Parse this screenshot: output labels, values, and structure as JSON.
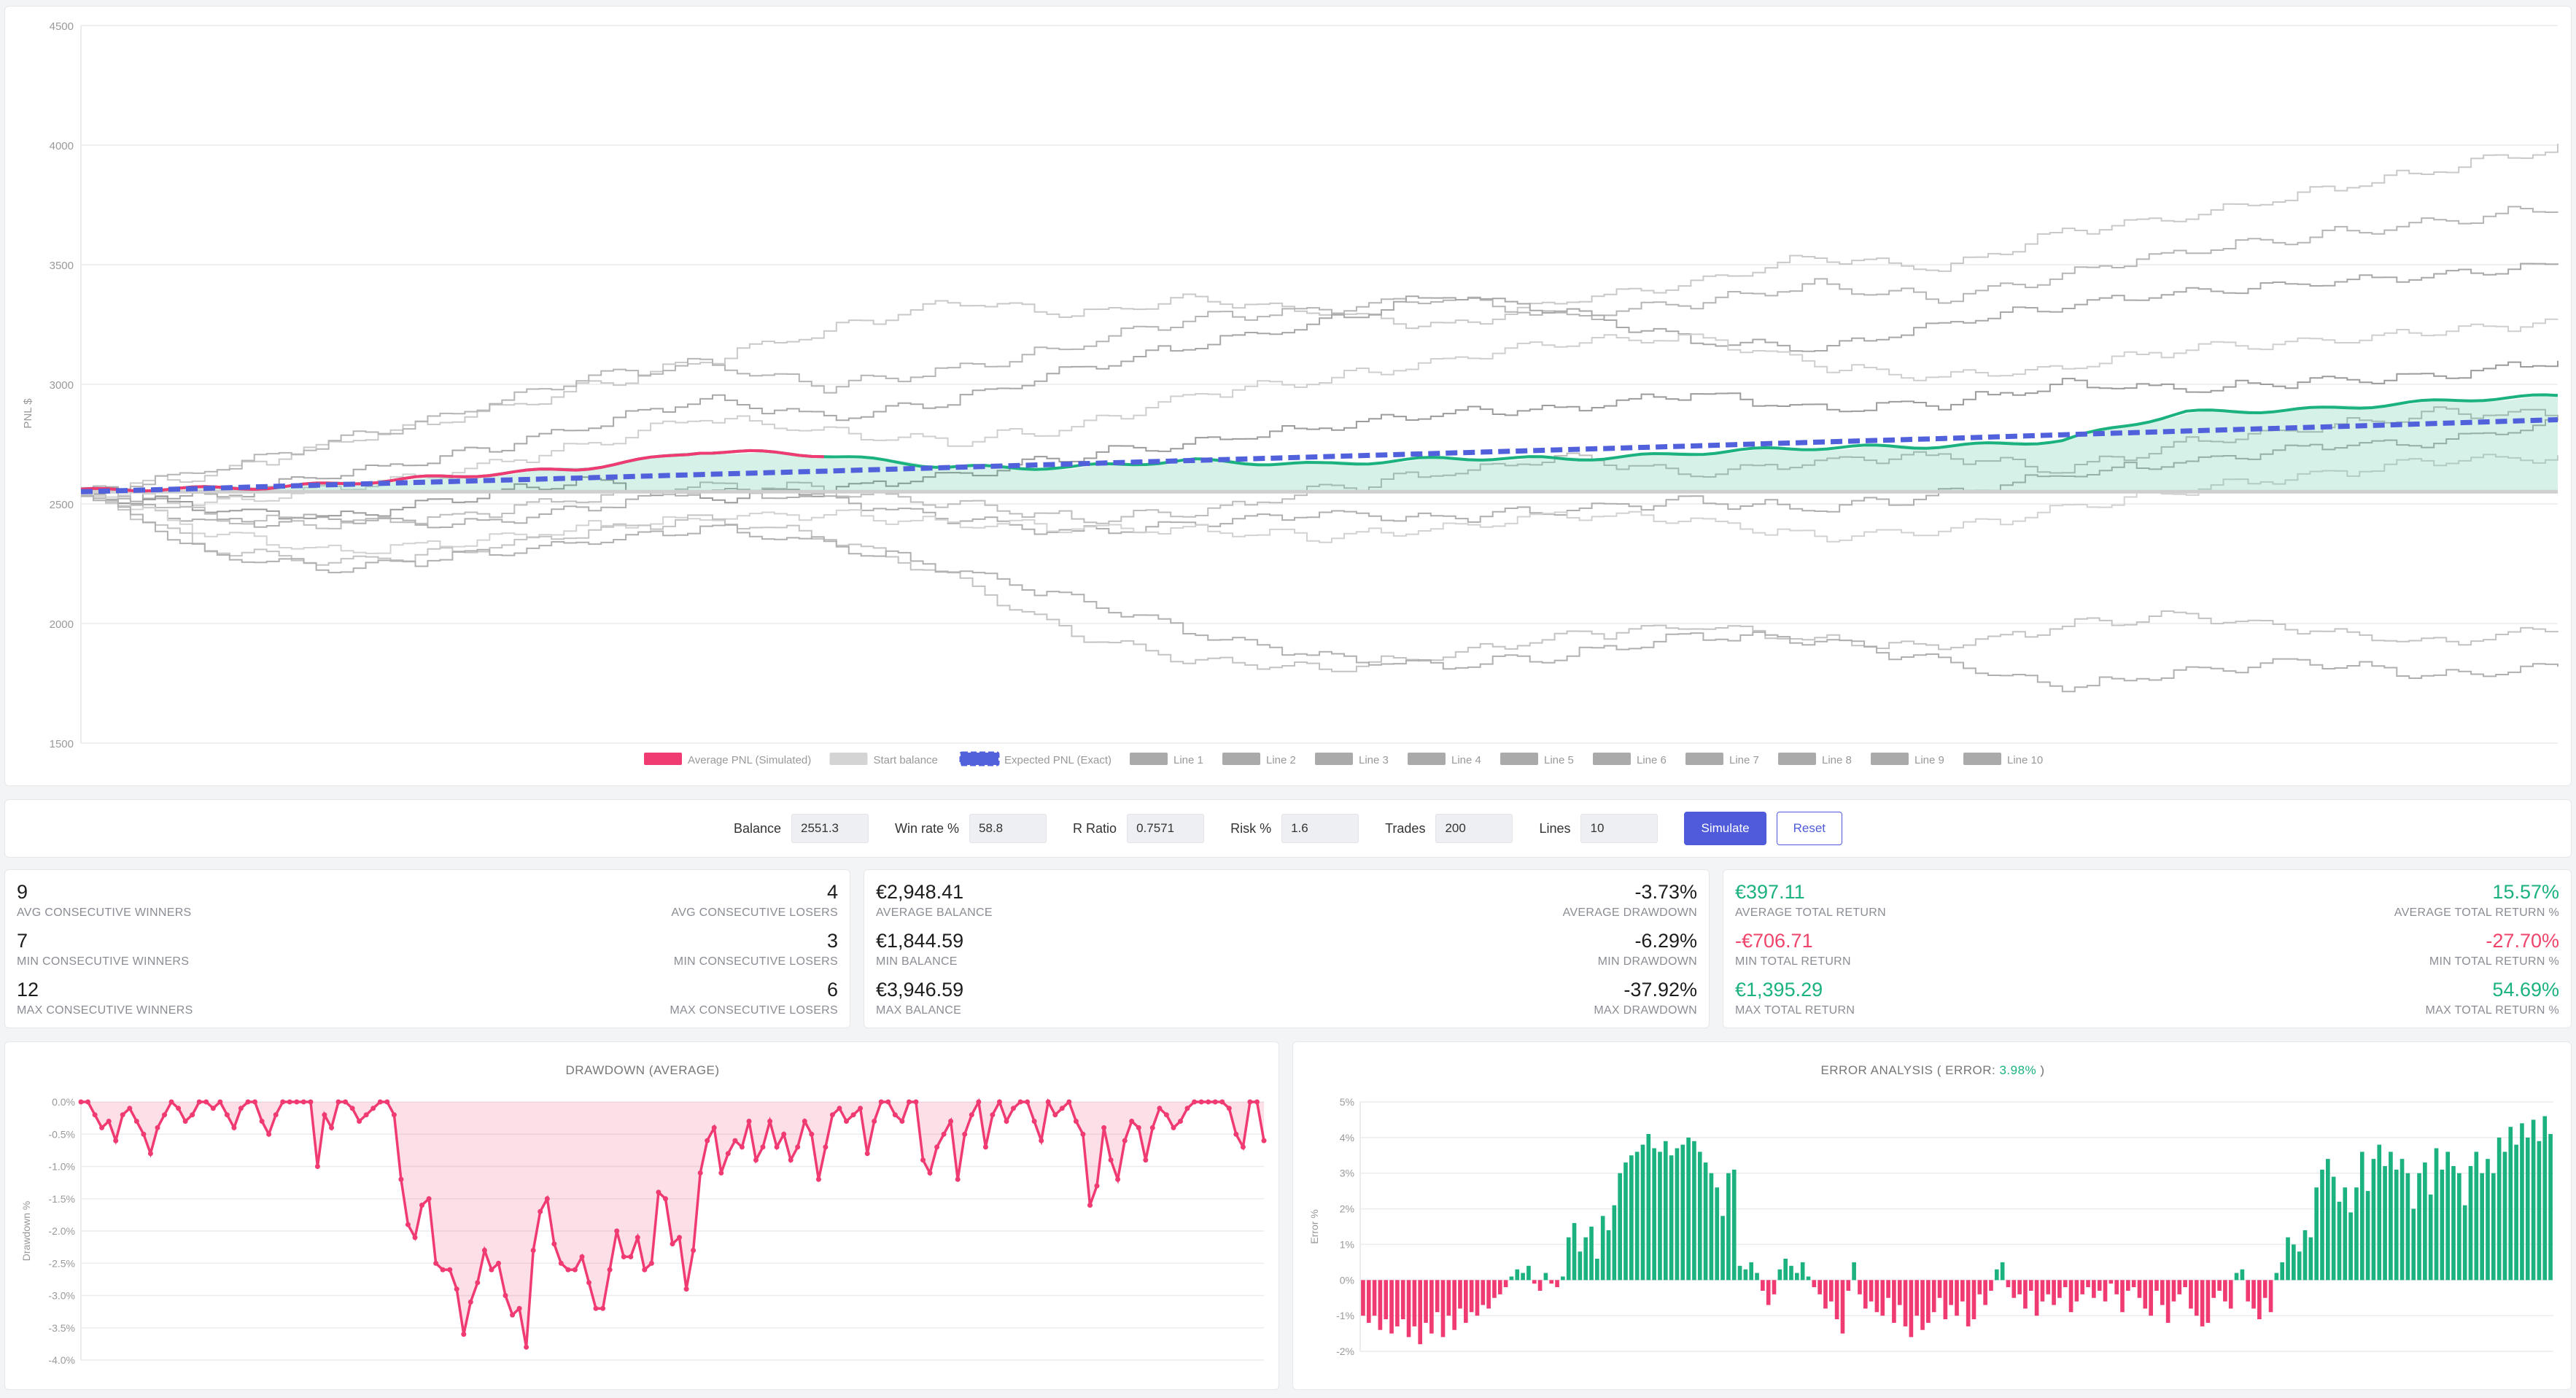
{
  "main_chart": {
    "ylabel": "PNL $",
    "y_ticks": [
      "4500",
      "4000",
      "3500",
      "3000",
      "2500",
      "2000",
      "1500"
    ],
    "y_range": [
      1500,
      4500
    ],
    "legend": [
      {
        "label": "Average PNL (Simulated)",
        "color": "#f03a72"
      },
      {
        "label": "Start balance",
        "color": "#d4d4d4"
      },
      {
        "label": "Expected PNL (Exact)",
        "color": "#5160db"
      },
      {
        "label": "Line 1",
        "color": "#aaaaaa"
      },
      {
        "label": "Line 2",
        "color": "#aaaaaa"
      },
      {
        "label": "Line 3",
        "color": "#aaaaaa"
      },
      {
        "label": "Line 4",
        "color": "#aaaaaa"
      },
      {
        "label": "Line 5",
        "color": "#aaaaaa"
      },
      {
        "label": "Line 6",
        "color": "#aaaaaa"
      },
      {
        "label": "Line 7",
        "color": "#aaaaaa"
      },
      {
        "label": "Line 8",
        "color": "#aaaaaa"
      },
      {
        "label": "Line 9",
        "color": "#aaaaaa"
      },
      {
        "label": "Line 10",
        "color": "#aaaaaa"
      }
    ]
  },
  "controls": {
    "balance_label": "Balance",
    "balance_value": "2551.3",
    "winrate_label": "Win rate %",
    "winrate_value": "58.8",
    "rratio_label": "R Ratio",
    "rratio_value": "0.7571",
    "risk_label": "Risk %",
    "risk_value": "1.6",
    "trades_label": "Trades",
    "trades_value": "200",
    "lines_label": "Lines",
    "lines_value": "10",
    "simulate_label": "Simulate",
    "reset_label": "Reset"
  },
  "stats_consecutive": {
    "avg_winners_value": "9",
    "avg_winners_label": "AVG CONSECUTIVE WINNERS",
    "avg_losers_value": "4",
    "avg_losers_label": "AVG CONSECUTIVE LOSERS",
    "min_winners_value": "7",
    "min_winners_label": "MIN CONSECUTIVE WINNERS",
    "min_losers_value": "3",
    "min_losers_label": "MIN CONSECUTIVE LOSERS",
    "max_winners_value": "12",
    "max_winners_label": "MAX CONSECUTIVE WINNERS",
    "max_losers_value": "6",
    "max_losers_label": "MAX CONSECUTIVE LOSERS"
  },
  "stats_balance": {
    "avg_balance_value": "€2,948.41",
    "avg_balance_label": "AVERAGE BALANCE",
    "avg_drawdown_value": "-3.73%",
    "avg_drawdown_label": "AVERAGE DRAWDOWN",
    "min_balance_value": "€1,844.59",
    "min_balance_label": "MIN BALANCE",
    "min_drawdown_value": "-6.29%",
    "min_drawdown_label": "MIN DRAWDOWN",
    "max_balance_value": "€3,946.59",
    "max_balance_label": "MAX BALANCE",
    "max_drawdown_value": "-37.92%",
    "max_drawdown_label": "MAX DRAWDOWN"
  },
  "stats_return": {
    "avg_return_value": "€397.11",
    "avg_return_label": "AVERAGE TOTAL RETURN",
    "avg_return_pct_value": "15.57%",
    "avg_return_pct_label": "AVERAGE TOTAL RETURN %",
    "min_return_value": "-€706.71",
    "min_return_label": "MIN TOTAL RETURN",
    "min_return_pct_value": "-27.70%",
    "min_return_pct_label": "MIN TOTAL RETURN %",
    "max_return_value": "€1,395.29",
    "max_return_label": "MAX TOTAL RETURN",
    "max_return_pct_value": "54.69%",
    "max_return_pct_label": "MAX TOTAL RETURN %"
  },
  "drawdown_chart": {
    "title": "DRAWDOWN (AVERAGE)",
    "ylabel": "Drawdown %",
    "y_ticks": [
      "0.0%",
      "-0.5%",
      "-1.0%",
      "-1.5%",
      "-2.0%",
      "-2.5%",
      "-3.0%",
      "-3.5%",
      "-4.0%"
    ],
    "y_range": [
      -4.0,
      0.0
    ],
    "color": "#f03a72"
  },
  "error_chart": {
    "title_prefix": "ERROR ANALYSIS ( ERROR: ",
    "error_value": "3.98%",
    "title_suffix": " )",
    "ylabel": "Error %",
    "y_ticks": [
      "5%",
      "4%",
      "3%",
      "2%",
      "1%",
      "0%",
      "-1%",
      "-2%"
    ],
    "y_range": [
      -2,
      5
    ],
    "pos_color": "#1bb27f",
    "neg_color": "#f03a72"
  },
  "chart_data": [
    {
      "type": "line",
      "x": [
        0,
        10,
        20,
        30,
        40,
        50,
        60,
        70,
        80,
        90,
        100,
        110,
        120,
        130,
        140,
        150,
        160,
        170,
        180,
        190,
        200
      ],
      "series": [
        {
          "name": "Average PNL (Simulated)",
          "values": [
            2551,
            2565,
            2585,
            2610,
            2650,
            2720,
            2700,
            2660,
            2650,
            2680,
            2670,
            2685,
            2690,
            2715,
            2730,
            2745,
            2765,
            2880,
            2900,
            2925,
            2950
          ]
        },
        {
          "name": "Start balance",
          "values": [
            2551,
            2551,
            2551,
            2551,
            2551,
            2551,
            2551,
            2551,
            2551,
            2551,
            2551,
            2551,
            2551,
            2551,
            2551,
            2551,
            2551,
            2551,
            2551,
            2551,
            2551
          ]
        },
        {
          "name": "Expected PNL (Exact)",
          "values": [
            2551,
            2565,
            2580,
            2594,
            2608,
            2623,
            2637,
            2652,
            2667,
            2682,
            2697,
            2712,
            2727,
            2742,
            2758,
            2773,
            2789,
            2805,
            2820,
            2836,
            2852
          ]
        },
        {
          "name": "Line 1",
          "values": [
            2551,
            2620,
            2750,
            2860,
            2980,
            3100,
            3220,
            3350,
            3290,
            3360,
            3300,
            3240,
            3350,
            3430,
            3540,
            3480,
            3640,
            3700,
            3800,
            3900,
            3990
          ]
        },
        {
          "name": "Line 2",
          "values": [
            2551,
            2640,
            2760,
            2880,
            3020,
            3090,
            2990,
            3060,
            3160,
            3280,
            3310,
            3360,
            3280,
            3340,
            3420,
            3360,
            3460,
            3560,
            3620,
            3680,
            3740
          ]
        },
        {
          "name": "Line 3",
          "values": [
            2551,
            2520,
            2620,
            2700,
            2820,
            2940,
            2860,
            2930,
            3060,
            3170,
            3260,
            3380,
            3300,
            3180,
            3150,
            3250,
            3330,
            3390,
            3420,
            3460,
            3500
          ]
        },
        {
          "name": "Line 4",
          "values": [
            2551,
            2500,
            2560,
            2640,
            2740,
            2860,
            2800,
            2760,
            2820,
            2960,
            3020,
            3100,
            3180,
            3200,
            3080,
            3030,
            3070,
            3150,
            3180,
            3220,
            3260
          ]
        },
        {
          "name": "Line 5",
          "values": [
            2551,
            2480,
            2440,
            2520,
            2600,
            2520,
            2560,
            2620,
            2700,
            2760,
            2820,
            2880,
            2900,
            2960,
            2900,
            2920,
            3000,
            2980,
            3010,
            3040,
            3100
          ]
        },
        {
          "name": "Line 6",
          "values": [
            2551,
            2450,
            2410,
            2450,
            2520,
            2580,
            2560,
            2500,
            2440,
            2460,
            2560,
            2630,
            2700,
            2620,
            2680,
            2700,
            2640,
            2760,
            2820,
            2880,
            2880
          ]
        },
        {
          "name": "Line 7",
          "values": [
            2551,
            2420,
            2440,
            2410,
            2480,
            2560,
            2520,
            2440,
            2380,
            2420,
            2460,
            2440,
            2480,
            2510,
            2480,
            2540,
            2620,
            2680,
            2740,
            2760,
            2840
          ]
        },
        {
          "name": "Line 8",
          "values": [
            2551,
            2380,
            2300,
            2340,
            2400,
            2440,
            2460,
            2420,
            2400,
            2390,
            2360,
            2400,
            2460,
            2430,
            2360,
            2390,
            2480,
            2560,
            2620,
            2680,
            2700
          ]
        },
        {
          "name": "Line 9",
          "values": [
            2551,
            2310,
            2260,
            2300,
            2380,
            2440,
            2360,
            2200,
            1950,
            1840,
            1810,
            1870,
            1950,
            1990,
            1930,
            1900,
            1990,
            2040,
            1970,
            1920,
            1980
          ]
        },
        {
          "name": "Line 10",
          "values": [
            2551,
            2290,
            2230,
            2280,
            2340,
            2400,
            2330,
            2230,
            2100,
            1960,
            1860,
            1820,
            1870,
            1950,
            1930,
            1840,
            1730,
            1800,
            1840,
            1780,
            1820
          ]
        }
      ],
      "ylabel": "PNL $",
      "ylim": [
        1500,
        4500
      ]
    },
    {
      "type": "area",
      "values": [
        0,
        0,
        -0.2,
        -0.4,
        -0.3,
        -0.6,
        -0.2,
        -0.1,
        -0.3,
        -0.5,
        -0.8,
        -0.4,
        -0.2,
        0,
        -0.1,
        -0.3,
        -0.2,
        0,
        0,
        -0.1,
        0,
        -0.2,
        -0.4,
        -0.1,
        0,
        0,
        -0.3,
        -0.5,
        -0.2,
        0,
        0,
        0,
        0,
        0,
        -1.0,
        -0.2,
        -0.4,
        0,
        0,
        -0.1,
        -0.3,
        -0.2,
        -0.1,
        0,
        0,
        -0.2,
        -1.2,
        -1.9,
        -2.1,
        -1.6,
        -1.5,
        -2.5,
        -2.6,
        -2.6,
        -2.9,
        -3.6,
        -3.1,
        -2.8,
        -2.3,
        -2.6,
        -2.5,
        -3.0,
        -3.3,
        -3.2,
        -3.8,
        -2.3,
        -1.7,
        -1.5,
        -2.2,
        -2.5,
        -2.6,
        -2.6,
        -2.4,
        -2.8,
        -3.2,
        -3.2,
        -2.6,
        -2.0,
        -2.4,
        -2.4,
        -2.1,
        -2.6,
        -2.5,
        -1.4,
        -1.5,
        -2.2,
        -2.1,
        -2.9,
        -2.3,
        -1.1,
        -0.6,
        -0.4,
        -1.1,
        -0.8,
        -0.6,
        -0.7,
        -0.3,
        -0.9,
        -0.7,
        -0.3,
        -0.7,
        -0.5,
        -0.9,
        -0.7,
        -0.3,
        -0.5,
        -1.2,
        -0.7,
        -0.2,
        -0.1,
        -0.3,
        -0.2,
        -0.1,
        -0.8,
        -0.3,
        0,
        0,
        -0.2,
        -0.3,
        0,
        0,
        -0.9,
        -1.1,
        -0.7,
        -0.5,
        -0.3,
        -1.2,
        -0.5,
        -0.2,
        0,
        -0.7,
        -0.2,
        0,
        -0.3,
        -0.1,
        0,
        0,
        -0.3,
        -0.6,
        0,
        -0.2,
        -0.1,
        0,
        -0.3,
        -0.5,
        -1.6,
        -1.3,
        -0.4,
        -0.9,
        -1.2,
        -0.6,
        -0.3,
        -0.4,
        -0.9,
        -0.4,
        -0.1,
        -0.2,
        -0.4,
        -0.3,
        -0.1,
        0,
        0,
        0,
        0,
        0,
        -0.1,
        -0.5,
        -0.7,
        0,
        0,
        -0.6
      ],
      "title": "DRAWDOWN (AVERAGE)",
      "ylabel": "Drawdown %",
      "ylim": [
        -4.0,
        0.0
      ]
    },
    {
      "type": "bar",
      "values": [
        -1.0,
        -1.2,
        -1.0,
        -1.4,
        -1.1,
        -1.5,
        -1.3,
        -1.1,
        -1.6,
        -1.3,
        -1.8,
        -1.2,
        -1.5,
        -0.9,
        -1.6,
        -1.0,
        -1.4,
        -0.8,
        -1.2,
        -0.9,
        -1.0,
        -0.7,
        -0.8,
        -0.5,
        -0.4,
        -0.2,
        0.1,
        0.3,
        0.2,
        0.4,
        -0.1,
        -0.3,
        0.2,
        -0.1,
        -0.2,
        0.1,
        1.2,
        1.6,
        0.8,
        1.2,
        1.5,
        0.6,
        1.8,
        1.4,
        2.1,
        3.0,
        3.3,
        3.5,
        3.6,
        3.8,
        4.1,
        3.7,
        3.6,
        3.9,
        3.5,
        3.7,
        3.8,
        4.0,
        3.9,
        3.6,
        3.3,
        3.0,
        2.6,
        1.8,
        3.0,
        3.1,
        0.4,
        0.3,
        0.5,
        0.2,
        -0.3,
        -0.7,
        -0.4,
        0.3,
        0.6,
        0.4,
        0.2,
        0.5,
        0.1,
        -0.2,
        -0.4,
        -0.8,
        -0.6,
        -1.1,
        -1.5,
        -0.3,
        0.5,
        -0.4,
        -0.8,
        -0.6,
        -0.9,
        -1.0,
        -0.5,
        -1.2,
        -0.7,
        -1.3,
        -1.6,
        -1.0,
        -1.4,
        -1.2,
        -0.9,
        -0.5,
        -1.1,
        -0.7,
        -1.0,
        -0.6,
        -1.3,
        -1.1,
        -0.4,
        -0.7,
        -0.3,
        0.3,
        0.5,
        -0.2,
        -0.5,
        -0.4,
        -0.8,
        -0.3,
        -1.0,
        -0.6,
        -0.4,
        -0.7,
        -0.5,
        -0.2,
        -0.9,
        -0.6,
        -0.4,
        -0.2,
        -0.5,
        -0.3,
        -0.6,
        -0.1,
        -0.4,
        -0.9,
        -0.3,
        -0.2,
        -0.5,
        -0.8,
        -1.0,
        -0.3,
        -0.7,
        -1.2,
        -0.6,
        -0.4,
        -0.2,
        -0.8,
        -1.0,
        -1.3,
        -1.2,
        -0.5,
        -0.3,
        -0.6,
        -0.8,
        0.2,
        0.3,
        -0.6,
        -0.8,
        -1.1,
        -0.5,
        -0.9,
        0.2,
        0.5,
        1.2,
        1.0,
        0.8,
        1.4,
        1.2,
        2.6,
        3.1,
        3.4,
        2.9,
        2.2,
        2.6,
        1.9,
        2.6,
        3.6,
        2.5,
        3.4,
        3.8,
        3.2,
        3.6,
        3.1,
        3.4,
        3.0,
        2.0,
        3.0,
        3.3,
        2.4,
        3.7,
        3.1,
        3.6,
        3.2,
        3.0,
        2.1,
        3.2,
        3.6,
        3.0,
        3.4,
        3.0,
        4.0,
        3.6,
        4.3,
        3.8,
        4.4,
        4.0,
        4.5,
        3.9,
        4.6,
        4.1
      ],
      "title": "ERROR ANALYSIS ( ERROR: 3.98% )",
      "ylabel": "Error %",
      "ylim": [
        -2,
        5
      ]
    }
  ]
}
